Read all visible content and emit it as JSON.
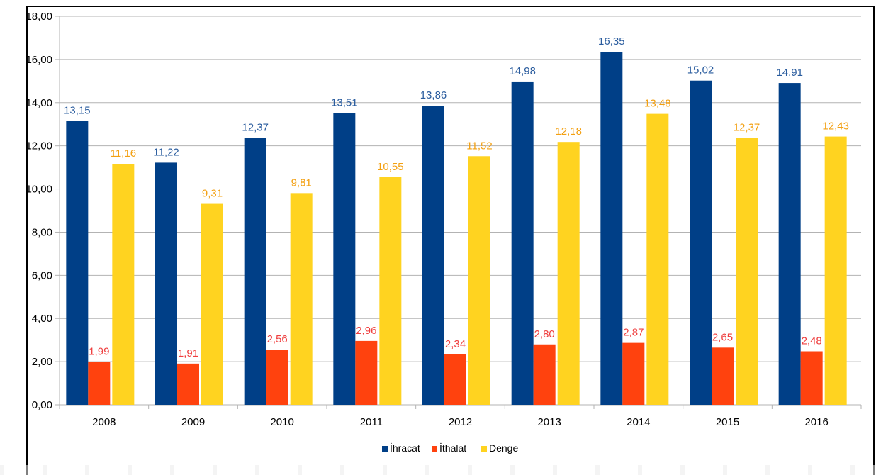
{
  "chart_data": {
    "type": "bar",
    "title": "",
    "xlabel": "",
    "ylabel": "",
    "ylim": [
      0,
      18
    ],
    "y_ticks": [
      "0,00",
      "2,00",
      "4,00",
      "6,00",
      "8,00",
      "10,00",
      "12,00",
      "14,00",
      "16,00",
      "18,00"
    ],
    "grid": true,
    "legend_position": "bottom",
    "categories": [
      "2008",
      "2009",
      "2010",
      "2011",
      "2012",
      "2013",
      "2014",
      "2015",
      "2016"
    ],
    "series": [
      {
        "name": "İhracat",
        "color": "#003f87",
        "label_color": "#2a5c9e",
        "values": [
          13.15,
          11.22,
          12.37,
          13.51,
          13.86,
          14.98,
          16.35,
          15.02,
          14.91
        ],
        "labels": [
          "13,15",
          "11,22",
          "12,37",
          "13,51",
          "13,86",
          "14,98",
          "16,35",
          "15,02",
          "14,91"
        ]
      },
      {
        "name": "İthalat",
        "color": "#ff420e",
        "label_color": "#ef3e3e",
        "values": [
          1.99,
          1.91,
          2.56,
          2.96,
          2.34,
          2.8,
          2.87,
          2.65,
          2.48
        ],
        "labels": [
          "1,99",
          "1,91",
          "2,56",
          "2,96",
          "2,34",
          "2,80",
          "2,87",
          "2,65",
          "2,48"
        ]
      },
      {
        "name": "Denge",
        "color": "#ffd320",
        "label_color": "#f3a012",
        "values": [
          11.16,
          9.31,
          9.81,
          10.55,
          11.52,
          12.18,
          13.48,
          12.37,
          12.43
        ],
        "labels": [
          "11,16",
          "9,31",
          "9,81",
          "10,55",
          "11,52",
          "12,18",
          "13,48",
          "12,37",
          "12,43"
        ]
      }
    ]
  }
}
